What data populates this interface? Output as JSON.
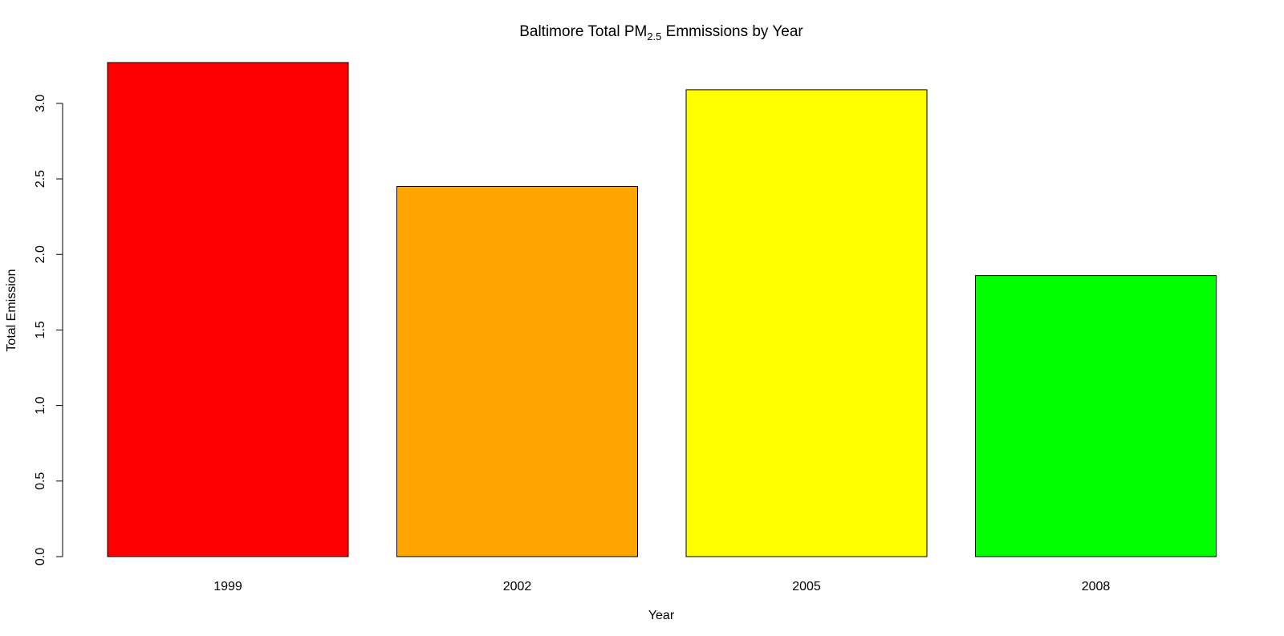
{
  "chart_data": {
    "type": "bar",
    "title": {
      "prefix": "Baltimore Total PM",
      "subscript": "2.5",
      "suffix": " Emmissions by Year"
    },
    "xlabel": "Year",
    "ylabel": "Total Emission",
    "categories": [
      "1999",
      "2002",
      "2005",
      "2008"
    ],
    "values": [
      3.27,
      2.45,
      3.09,
      1.86
    ],
    "colors": [
      "#FF0000",
      "#FFA500",
      "#FFFF00",
      "#00FF00"
    ],
    "ylim": [
      0,
      3.27
    ],
    "yticks": [
      {
        "value": 0.0,
        "label": "0.0"
      },
      {
        "value": 0.5,
        "label": "0.5"
      },
      {
        "value": 1.0,
        "label": "1.0"
      },
      {
        "value": 1.5,
        "label": "1.5"
      },
      {
        "value": 2.0,
        "label": "2.0"
      },
      {
        "value": 2.5,
        "label": "2.5"
      },
      {
        "value": 3.0,
        "label": "3.0"
      }
    ],
    "grid": false,
    "legend": "none"
  }
}
